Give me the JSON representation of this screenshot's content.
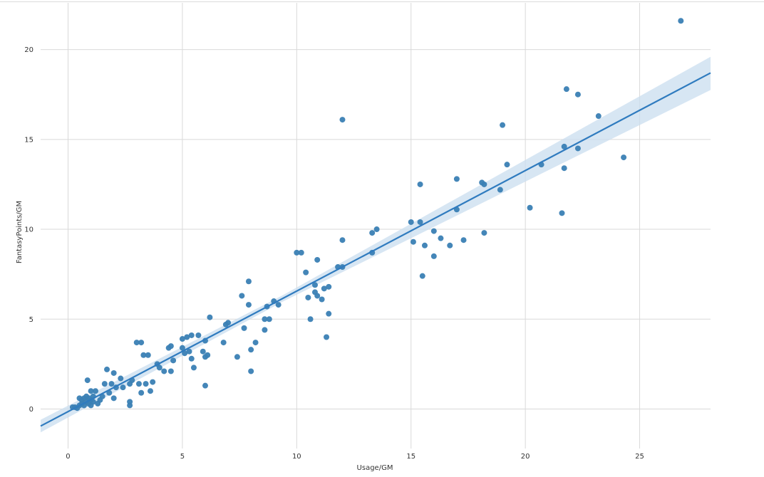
{
  "chart_data": {
    "type": "scatter",
    "xlabel": "Usage/GM",
    "ylabel": "FantasyPoints/GM",
    "xlim": [
      -1.2,
      28.1
    ],
    "ylim": [
      -2.2,
      22.6
    ],
    "xticks": [
      0,
      5,
      10,
      15,
      20,
      25
    ],
    "yticks": [
      0,
      5,
      10,
      15,
      20
    ],
    "grid": true,
    "colors": {
      "points": "#3a7fb4",
      "line": "#2f7bbf",
      "band": "#c9ddef",
      "grid": "#d9d9d9"
    },
    "points": [
      [
        0.2,
        0.1
      ],
      [
        0.3,
        0.1
      ],
      [
        0.4,
        0.05
      ],
      [
        0.5,
        0.2
      ],
      [
        0.5,
        0.6
      ],
      [
        0.6,
        0.3
      ],
      [
        0.6,
        0.5
      ],
      [
        0.7,
        0.2
      ],
      [
        0.7,
        0.6
      ],
      [
        0.8,
        0.4
      ],
      [
        0.8,
        0.7
      ],
      [
        0.9,
        0.3
      ],
      [
        0.9,
        0.6
      ],
      [
        0.85,
        1.6
      ],
      [
        1.0,
        0.2
      ],
      [
        1.0,
        0.5
      ],
      [
        1.0,
        1.0
      ],
      [
        1.1,
        0.4
      ],
      [
        1.1,
        0.7
      ],
      [
        1.2,
        1.0
      ],
      [
        1.3,
        0.3
      ],
      [
        1.4,
        0.5
      ],
      [
        1.5,
        0.7
      ],
      [
        1.6,
        1.4
      ],
      [
        1.7,
        2.2
      ],
      [
        1.8,
        0.9
      ],
      [
        1.9,
        1.4
      ],
      [
        2.0,
        0.6
      ],
      [
        2.0,
        2.0
      ],
      [
        2.1,
        1.2
      ],
      [
        2.3,
        1.7
      ],
      [
        2.4,
        1.2
      ],
      [
        2.7,
        0.2
      ],
      [
        2.7,
        0.4
      ],
      [
        2.7,
        1.4
      ],
      [
        2.8,
        1.6
      ],
      [
        3.0,
        3.7
      ],
      [
        3.1,
        1.4
      ],
      [
        3.2,
        0.9
      ],
      [
        3.2,
        3.7
      ],
      [
        3.3,
        3.0
      ],
      [
        3.4,
        1.4
      ],
      [
        3.5,
        3.0
      ],
      [
        3.6,
        1.0
      ],
      [
        3.7,
        1.5
      ],
      [
        3.9,
        2.5
      ],
      [
        4.0,
        2.3
      ],
      [
        4.2,
        2.1
      ],
      [
        4.4,
        3.4
      ],
      [
        4.5,
        3.5
      ],
      [
        4.5,
        2.1
      ],
      [
        4.6,
        2.7
      ],
      [
        5.0,
        3.4
      ],
      [
        5.0,
        3.9
      ],
      [
        5.1,
        3.1
      ],
      [
        5.2,
        4.0
      ],
      [
        5.3,
        3.2
      ],
      [
        5.4,
        2.8
      ],
      [
        5.4,
        4.1
      ],
      [
        5.5,
        2.3
      ],
      [
        5.7,
        4.1
      ],
      [
        5.9,
        3.2
      ],
      [
        6.0,
        2.9
      ],
      [
        6.0,
        3.8
      ],
      [
        6.0,
        1.3
      ],
      [
        6.1,
        3.0
      ],
      [
        6.2,
        5.1
      ],
      [
        6.8,
        3.7
      ],
      [
        6.9,
        4.7
      ],
      [
        7.0,
        4.8
      ],
      [
        7.4,
        2.9
      ],
      [
        7.6,
        6.3
      ],
      [
        7.7,
        4.5
      ],
      [
        7.9,
        7.1
      ],
      [
        7.9,
        5.8
      ],
      [
        8.0,
        3.3
      ],
      [
        8.0,
        2.1
      ],
      [
        8.2,
        3.7
      ],
      [
        8.6,
        4.4
      ],
      [
        8.6,
        5.0
      ],
      [
        8.7,
        5.7
      ],
      [
        8.8,
        5.0
      ],
      [
        9.0,
        6.0
      ],
      [
        9.2,
        5.8
      ],
      [
        10.0,
        8.7
      ],
      [
        10.2,
        8.7
      ],
      [
        10.4,
        7.6
      ],
      [
        10.5,
        6.2
      ],
      [
        10.6,
        5.0
      ],
      [
        10.8,
        6.5
      ],
      [
        10.8,
        6.9
      ],
      [
        10.9,
        6.3
      ],
      [
        10.9,
        8.3
      ],
      [
        11.1,
        6.1
      ],
      [
        11.2,
        6.7
      ],
      [
        11.3,
        4.0
      ],
      [
        11.4,
        5.3
      ],
      [
        11.4,
        6.8
      ],
      [
        11.8,
        7.9
      ],
      [
        12.0,
        7.9
      ],
      [
        12.0,
        9.4
      ],
      [
        12.0,
        16.1
      ],
      [
        13.3,
        8.7
      ],
      [
        13.3,
        9.8
      ],
      [
        13.5,
        10.0
      ],
      [
        15.0,
        10.4
      ],
      [
        15.1,
        9.3
      ],
      [
        15.4,
        10.4
      ],
      [
        15.4,
        12.5
      ],
      [
        15.5,
        7.4
      ],
      [
        15.6,
        9.1
      ],
      [
        16.0,
        9.9
      ],
      [
        16.0,
        8.5
      ],
      [
        16.3,
        9.5
      ],
      [
        16.7,
        9.1
      ],
      [
        17.0,
        11.1
      ],
      [
        17.0,
        12.8
      ],
      [
        17.3,
        9.4
      ],
      [
        18.1,
        12.6
      ],
      [
        18.2,
        9.8
      ],
      [
        18.2,
        12.5
      ],
      [
        18.9,
        12.2
      ],
      [
        19.0,
        15.8
      ],
      [
        19.2,
        13.6
      ],
      [
        20.2,
        11.2
      ],
      [
        20.7,
        13.6
      ],
      [
        21.6,
        10.9
      ],
      [
        21.7,
        13.4
      ],
      [
        21.7,
        14.6
      ],
      [
        21.8,
        17.8
      ],
      [
        22.3,
        14.5
      ],
      [
        22.3,
        17.5
      ],
      [
        23.2,
        16.3
      ],
      [
        24.3,
        14.0
      ],
      [
        26.8,
        21.6
      ]
    ],
    "regression": {
      "x": [
        -1.2,
        28.1
      ],
      "y": [
        -0.95,
        18.7
      ],
      "band_lower_end": [
        -1.3,
        17.75
      ],
      "band_upper_end": [
        -0.6,
        19.6
      ]
    }
  }
}
